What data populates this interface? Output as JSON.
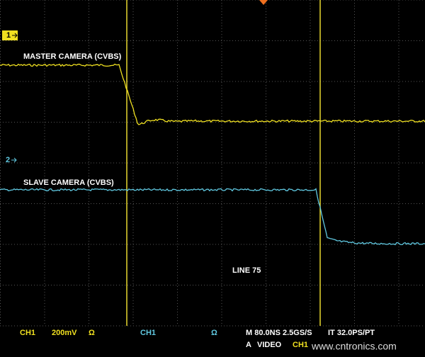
{
  "markers": {
    "ch1": "1",
    "ch2": "2"
  },
  "traces": {
    "master": "MASTER CAMERA (CVBS)",
    "slave": "SLAVE CAMERA (CVBS)",
    "line": "LINE 75"
  },
  "status": {
    "ch1_label": "CH1",
    "ch1_scale": "200mV",
    "ch1_ohm": "Ω",
    "ch2_label": "CH1",
    "ch2_ohm": "Ω",
    "timebase": "M 80.0NS 2.5GS/S",
    "interp": "IT 32.0PS/PT",
    "trigger_mode": "A",
    "trigger_type": "VIDEO",
    "trigger_source": "CH1"
  },
  "watermark": "www.cntronics.com"
}
